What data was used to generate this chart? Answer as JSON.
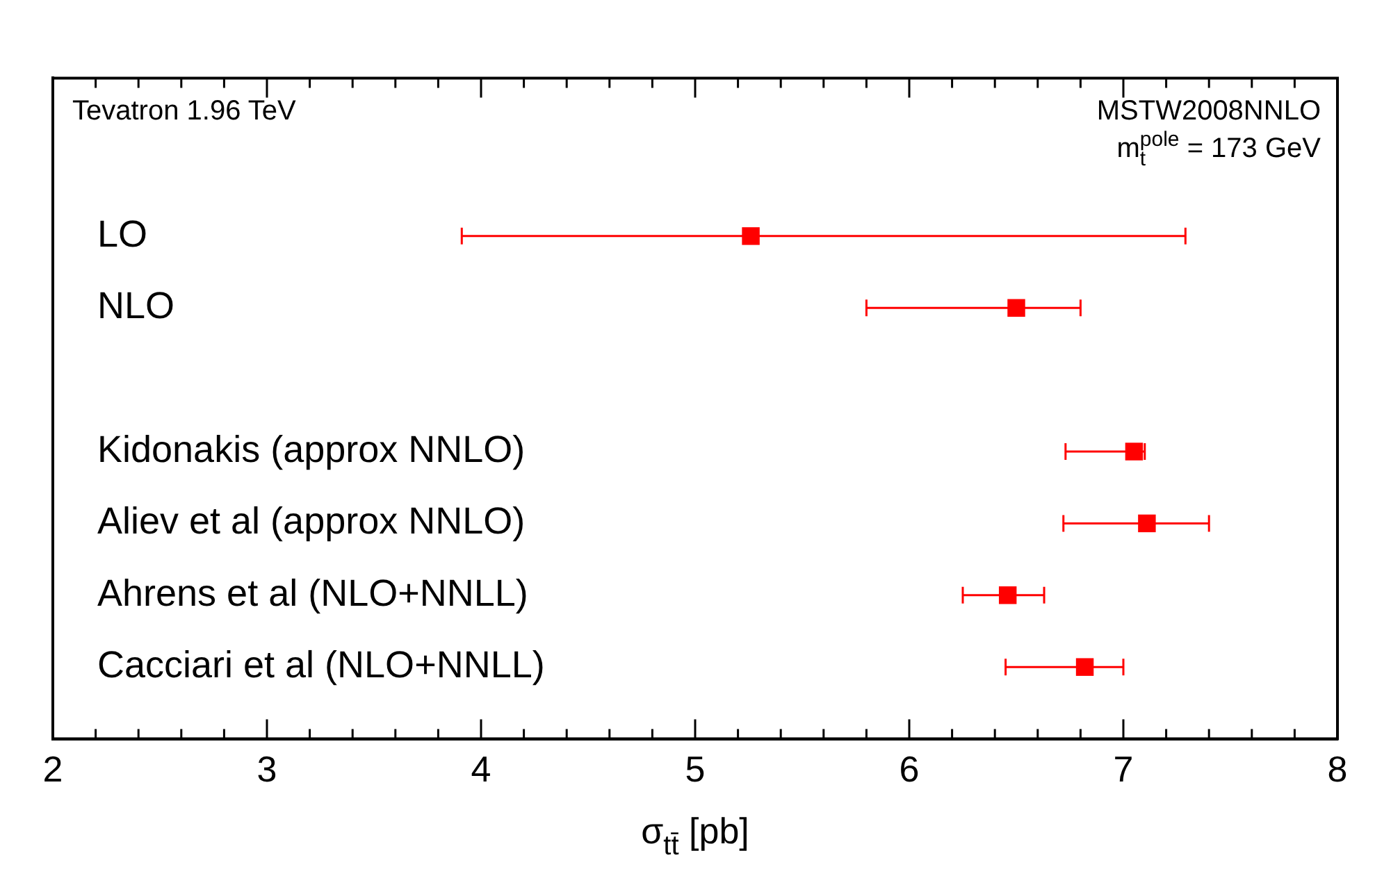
{
  "chart_data": {
    "type": "scatter",
    "orientation": "horizontal",
    "categories": [
      "LO",
      "NLO",
      null,
      "Kidonakis (approx NNLO)",
      "Aliev et al (approx NNLO)",
      "Ahrens et al (NLO+NNLL)",
      "Cacciari et al (NLO+NNLL)"
    ],
    "values": [
      5.26,
      6.5,
      null,
      7.05,
      7.11,
      6.46,
      6.82
    ],
    "errors": [
      [
        3.91,
        7.29
      ],
      [
        5.8,
        6.8
      ],
      null,
      [
        6.73,
        7.1
      ],
      [
        6.72,
        7.4
      ],
      [
        6.25,
        6.63
      ],
      [
        6.45,
        7.0
      ]
    ],
    "color": "#ff0000",
    "marker": "square",
    "xlabel": "σ$_{tt̄}$ [pb]",
    "xlim": [
      2,
      8
    ],
    "xticks": [
      2,
      {
        "value": 2.2,
        "label": null
      },
      {
        "value": 2.4,
        "label": null
      },
      {
        "value": 2.6,
        "label": null
      },
      {
        "value": 2.8,
        "label": null
      },
      3,
      {
        "value": 3.2,
        "label": null
      },
      {
        "value": 3.4,
        "label": null
      },
      {
        "value": 3.6,
        "label": null
      },
      {
        "value": 3.8,
        "label": null
      },
      4,
      {
        "value": 4.2,
        "label": null
      },
      {
        "value": 4.4,
        "label": null
      },
      {
        "value": 4.6,
        "label": null
      },
      {
        "value": 4.8,
        "label": null
      },
      5,
      {
        "value": 5.2,
        "label": null
      },
      {
        "value": 5.4,
        "label": null
      },
      {
        "value": 5.6,
        "label": null
      },
      {
        "value": 5.8,
        "label": null
      },
      6,
      {
        "value": 6.2,
        "label": null
      },
      {
        "value": 6.4,
        "label": null
      },
      {
        "value": 6.6,
        "label": null
      },
      {
        "value": 6.8,
        "label": null
      },
      7,
      {
        "value": 7.2,
        "label": null
      },
      {
        "value": 7.4,
        "label": null
      },
      {
        "value": 7.6,
        "label": null
      },
      {
        "value": 7.8,
        "label": null
      },
      8
    ],
    "grid": false,
    "legend": false,
    "annotations": [
      "Tevatron 1.96 TeV",
      "MSTW2008NNLO",
      "m$_{t}$$^{pole}$ = 173 GeV"
    ]
  }
}
